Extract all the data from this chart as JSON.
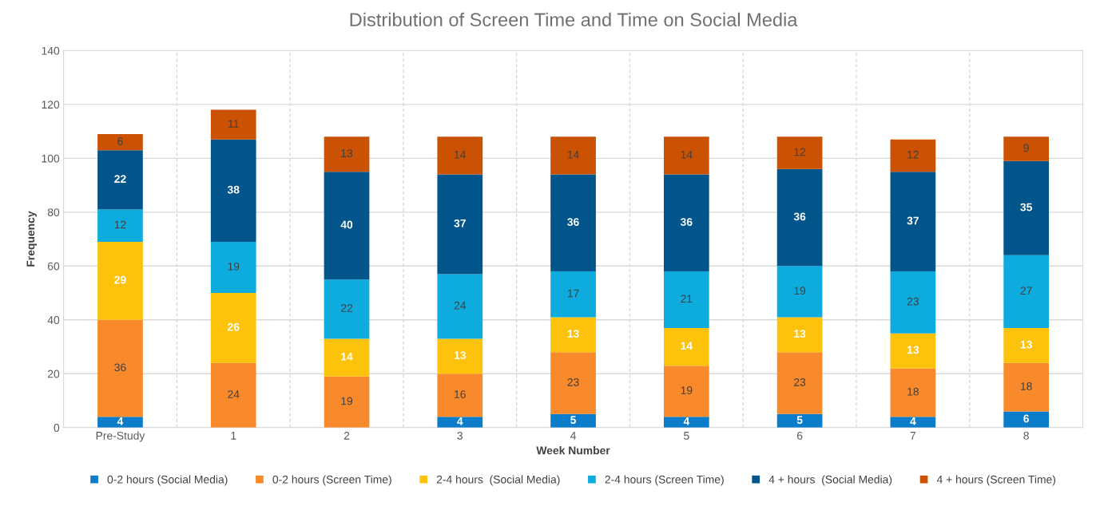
{
  "chart_data": {
    "type": "bar",
    "title": "Distribution of Screen Time and Time on Social Media",
    "xlabel": "Week Number",
    "ylabel": "Frequency",
    "categories": [
      "Pre-Study",
      "1",
      "2",
      "3",
      "4",
      "5",
      "6",
      "7",
      "8"
    ],
    "stacked": true,
    "data_labels": true,
    "grid": true,
    "legend": "bottom",
    "ylim": [
      0,
      140
    ],
    "yticks": [
      0,
      20,
      40,
      60,
      80,
      100,
      120,
      140
    ],
    "series": [
      {
        "name": "0-2 hours (Social Media)",
        "color": "#0a7cc9",
        "values": [
          4,
          0,
          0,
          4,
          5,
          4,
          5,
          4,
          6
        ],
        "value_labels": [
          "4",
          null,
          null,
          "4",
          "5",
          "4",
          "5",
          "4",
          "6"
        ]
      },
      {
        "name": "0-2 hours (Screen Time)",
        "color": "#f98a2c",
        "values": [
          36,
          24,
          19,
          16,
          23,
          19,
          23,
          18,
          18
        ]
      },
      {
        "name": "2-4 hours  (Social Media)",
        "color": "#fdc20c",
        "values": [
          29,
          26,
          14,
          13,
          13,
          14,
          13,
          13,
          13
        ]
      },
      {
        "name": "2-4 hours (Screen Time)",
        "color": "#0eabdf",
        "values": [
          12,
          19,
          22,
          24,
          17,
          21,
          19,
          23,
          27
        ]
      },
      {
        "name": "4 + hours  (Social Media)",
        "color": "#02558b",
        "values": [
          22,
          38,
          40,
          37,
          36,
          36,
          36,
          37,
          35
        ]
      },
      {
        "name": "4 + hours (Screen Time)",
        "color": "#cb5103",
        "values": [
          6,
          11,
          13,
          14,
          14,
          14,
          12,
          12,
          9
        ]
      }
    ]
  }
}
